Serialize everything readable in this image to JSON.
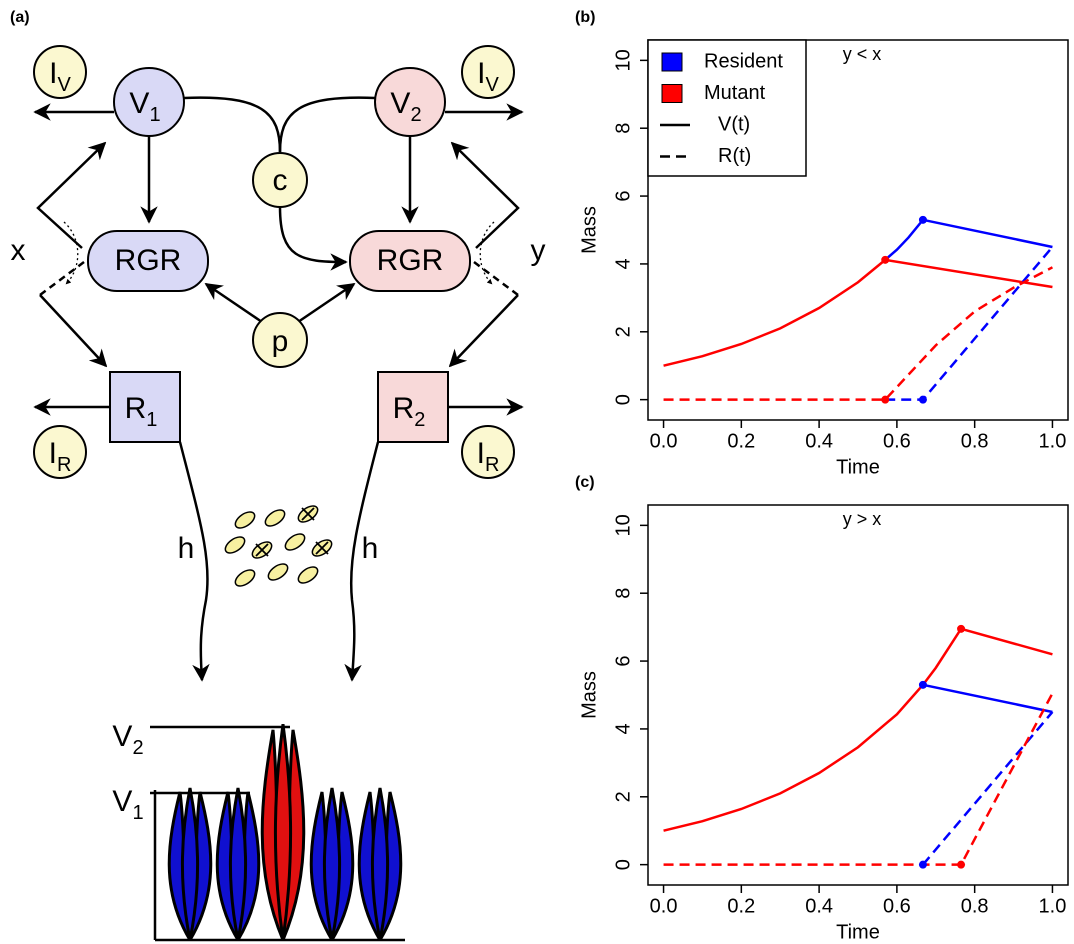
{
  "diagram": {
    "panel": "(a)",
    "nodes": [
      {
        "label": "I",
        "sub": "V"
      },
      {
        "label": "I",
        "sub": "V"
      },
      {
        "label": "V",
        "sub": "1"
      },
      {
        "label": "V",
        "sub": "2"
      },
      {
        "label": "c"
      },
      {
        "label": "RGR"
      },
      {
        "label": "RGR"
      },
      {
        "label": "p"
      },
      {
        "label": "R",
        "sub": "1"
      },
      {
        "label": "R",
        "sub": "2"
      },
      {
        "label": "I",
        "sub": "R"
      },
      {
        "label": "I",
        "sub": "R"
      },
      {
        "label": "x"
      },
      {
        "label": "y"
      },
      {
        "label": "h"
      },
      {
        "label": "h"
      },
      {
        "label": "V",
        "sub": "2"
      },
      {
        "label": "V",
        "sub": "1"
      }
    ]
  },
  "chart_data": [
    {
      "type": "line",
      "panel": "(b)",
      "annotation": "y < x",
      "xlabel": "Time",
      "ylabel": "Mass",
      "xlim": [
        -0.04,
        1.04
      ],
      "ylim": [
        -0.6,
        10.6
      ],
      "xticks": [
        {
          "value": 0,
          "label": "0.0"
        },
        {
          "value": 0.2,
          "label": "0.2"
        },
        {
          "value": 0.4,
          "label": "0.4"
        },
        {
          "value": 0.6,
          "label": "0.6"
        },
        {
          "value": 0.8,
          "label": "0.8"
        },
        {
          "value": 1,
          "label": "1.0"
        }
      ],
      "yticks": [
        0,
        2,
        4,
        6,
        8,
        10
      ],
      "legend": {
        "position": "top-left",
        "entries": [
          {
            "label": "Resident",
            "color": "#0000ff"
          },
          {
            "label": "Mutant",
            "color": "#ff0000"
          },
          {
            "label": "V(t)",
            "dash": "solid"
          },
          {
            "label": "R(t)",
            "dash": "dashed"
          }
        ]
      },
      "series": [
        {
          "color": "#0000ff",
          "dash": "solid",
          "x": [
            0.57,
            0.6,
            0.63,
            0.667,
            1.0
          ],
          "values": [
            4.12,
            4.42,
            4.78,
            5.3,
            4.5
          ]
        },
        {
          "color": "#ff0000",
          "dash": "solid",
          "x": [
            0,
            0.1,
            0.2,
            0.3,
            0.4,
            0.5,
            0.57,
            1.0
          ],
          "values": [
            1,
            1.28,
            1.64,
            2.1,
            2.7,
            3.46,
            4.12,
            3.32
          ]
        },
        {
          "color": "#0000ff",
          "dash": "dashed",
          "x": [
            0.57,
            0.667,
            1.0
          ],
          "values": [
            0,
            0,
            4.5
          ]
        },
        {
          "color": "#ff0000",
          "dash": "dashed",
          "x": [
            0,
            0.57,
            0.7,
            0.8,
            0.9,
            1.0
          ],
          "values": [
            0,
            0,
            1.6,
            2.6,
            3.3,
            3.9
          ]
        }
      ],
      "points": {
        "x": [
          0.57,
          0.667,
          0.57,
          0.667
        ],
        "values": [
          4.12,
          5.3,
          0,
          0
        ],
        "colors": [
          "#ff0000",
          "#0000ff",
          "#ff0000",
          "#0000ff"
        ]
      }
    },
    {
      "type": "line",
      "panel": "(c)",
      "annotation": "y > x",
      "xlabel": "Time",
      "ylabel": "Mass",
      "xlim": [
        -0.04,
        1.04
      ],
      "ylim": [
        -0.6,
        10.6
      ],
      "xticks": [
        {
          "value": 0,
          "label": "0.0"
        },
        {
          "value": 0.2,
          "label": "0.2"
        },
        {
          "value": 0.4,
          "label": "0.4"
        },
        {
          "value": 0.6,
          "label": "0.6"
        },
        {
          "value": 0.8,
          "label": "0.8"
        },
        {
          "value": 1,
          "label": "1.0"
        }
      ],
      "yticks": [
        0,
        2,
        4,
        6,
        8,
        10
      ],
      "series": [
        {
          "color": "#0000ff",
          "dash": "solid",
          "x": [
            0.667,
            1.0
          ],
          "values": [
            5.3,
            4.5
          ]
        },
        {
          "color": "#ff0000",
          "dash": "solid",
          "x": [
            0,
            0.1,
            0.2,
            0.3,
            0.4,
            0.5,
            0.6,
            0.667,
            0.7,
            0.765,
            1.0
          ],
          "values": [
            1,
            1.28,
            1.64,
            2.1,
            2.7,
            3.46,
            4.43,
            5.3,
            5.8,
            6.95,
            6.2
          ]
        },
        {
          "color": "#0000ff",
          "dash": "dashed",
          "x": [
            0.667,
            1.0
          ],
          "values": [
            0,
            4.5
          ]
        },
        {
          "color": "#ff0000",
          "dash": "dashed",
          "x": [
            0,
            0.765,
            1.0
          ],
          "values": [
            0,
            0,
            5.05
          ]
        }
      ],
      "points": {
        "x": [
          0.667,
          0.667,
          0.765,
          0.765
        ],
        "values": [
          5.3,
          0,
          6.95,
          0
        ],
        "colors": [
          "#0000ff",
          "#0000ff",
          "#ff0000",
          "#ff0000"
        ]
      }
    }
  ]
}
